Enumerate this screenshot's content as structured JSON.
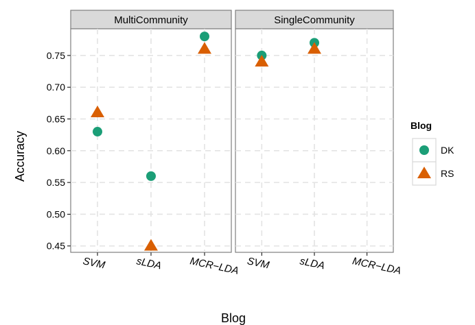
{
  "chart_data": {
    "type": "scatter",
    "panels": [
      "MultiCommunity",
      "SingleCommunity"
    ],
    "categories": [
      "SVM",
      "sLDA",
      "MCR−LDA"
    ],
    "series": [
      {
        "name": "DK",
        "color": "#1b9e77",
        "shape": "circle",
        "values": {
          "MultiCommunity": [
            0.63,
            0.56,
            0.78
          ],
          "SingleCommunity": [
            0.75,
            0.77,
            null
          ]
        }
      },
      {
        "name": "RS",
        "color": "#d95f02",
        "shape": "triangle",
        "values": {
          "MultiCommunity": [
            0.66,
            0.45,
            0.76
          ],
          "SingleCommunity": [
            0.74,
            0.76,
            null
          ]
        }
      }
    ],
    "xlabel": "Blog",
    "ylabel": "Accuracy",
    "yticks": [
      0.45,
      0.5,
      0.55,
      0.6,
      0.65,
      0.7,
      0.75
    ],
    "ytick_labels": [
      "0.45",
      "0.50",
      "0.55",
      "0.60",
      "0.65",
      "0.70",
      "0.75"
    ],
    "ylim": [
      0.44,
      0.792
    ],
    "legend": {
      "title": "Blog",
      "position": "right"
    },
    "grid": true
  }
}
